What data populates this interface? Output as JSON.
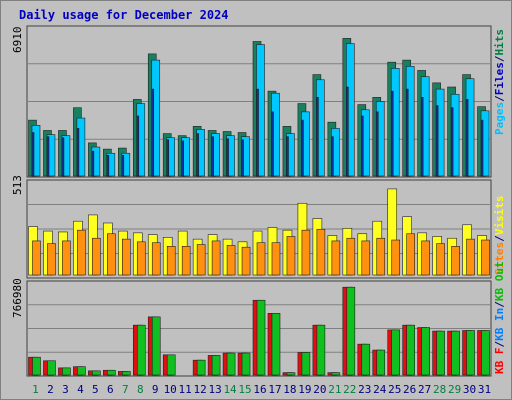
{
  "title": "Daily usage for December 2024",
  "colors": {
    "background": "#c0c0c0",
    "border": "#505050",
    "title": "#0000c0",
    "hits": "#008040",
    "files": "#00c0ff",
    "pages": "#0000c0",
    "visits": "#ffff00",
    "sites": "#ff8000",
    "kbin": "#008040",
    "kbout": "#00c000",
    "kbf": "#ff0000",
    "weekend": "#008040",
    "weekday": "#000080",
    "gridline": "#808080"
  },
  "chart_data": [
    {
      "type": "bar",
      "panel": "top",
      "ymax_label": "6910",
      "ylim": [
        0,
        6910
      ],
      "legend": [
        "Pages",
        "/",
        "Files",
        "/",
        "Hits"
      ],
      "categories": [
        "1",
        "2",
        "3",
        "4",
        "5",
        "6",
        "7",
        "8",
        "9",
        "10",
        "11",
        "12",
        "13",
        "14",
        "15",
        "16",
        "17",
        "18",
        "19",
        "20",
        "21",
        "22",
        "23",
        "24",
        "25",
        "26",
        "27",
        "28",
        "29",
        "30",
        "31"
      ],
      "weekend_days": [
        1,
        7,
        8,
        14,
        15,
        21,
        22,
        28,
        29
      ],
      "series": [
        {
          "name": "Hits",
          "values": [
            2700,
            2200,
            2200,
            3300,
            1600,
            1300,
            1350,
            3700,
            5900,
            2050,
            1950,
            2400,
            2200,
            2150,
            2100,
            6500,
            4100,
            2400,
            3500,
            4900,
            2600,
            6650,
            3450,
            3800,
            5500,
            5600,
            5100,
            4500,
            4300,
            4900,
            3350
          ]
        },
        {
          "name": "Files",
          "values": [
            2450,
            2000,
            1950,
            2800,
            1400,
            1100,
            1100,
            3500,
            5600,
            1850,
            1850,
            2250,
            2050,
            1950,
            1900,
            6350,
            4000,
            2050,
            3100,
            4650,
            2300,
            6400,
            3200,
            3600,
            5200,
            5300,
            4800,
            4200,
            3950,
            4700,
            3150
          ]
        },
        {
          "name": "Pages",
          "values": [
            2100,
            1900,
            1850,
            2300,
            1200,
            1000,
            1000,
            2900,
            4200,
            1750,
            1700,
            2050,
            1900,
            1800,
            1750,
            4200,
            3100,
            1900,
            2700,
            3800,
            1900,
            4300,
            2900,
            3100,
            4100,
            4200,
            3800,
            3400,
            3300,
            3700,
            2700
          ]
        }
      ]
    },
    {
      "type": "bar",
      "panel": "middle",
      "ymax_label": "513",
      "ylim": [
        0,
        513
      ],
      "legend": [
        "Visits",
        "/",
        "Sites"
      ],
      "categories": [
        "1",
        "2",
        "3",
        "4",
        "5",
        "6",
        "7",
        "8",
        "9",
        "10",
        "11",
        "12",
        "13",
        "14",
        "15",
        "16",
        "17",
        "18",
        "19",
        "20",
        "21",
        "22",
        "23",
        "24",
        "25",
        "26",
        "27",
        "28",
        "29",
        "30",
        "31"
      ],
      "series": [
        {
          "name": "Visits",
          "values": [
            270,
            245,
            240,
            300,
            335,
            290,
            245,
            235,
            225,
            210,
            245,
            200,
            225,
            200,
            185,
            245,
            265,
            250,
            400,
            315,
            220,
            260,
            230,
            300,
            480,
            325,
            235,
            215,
            205,
            280,
            220
          ]
        },
        {
          "name": "Sites",
          "values": [
            190,
            175,
            190,
            250,
            205,
            230,
            200,
            185,
            180,
            160,
            160,
            170,
            190,
            165,
            155,
            180,
            180,
            215,
            250,
            255,
            190,
            205,
            190,
            205,
            195,
            230,
            190,
            175,
            160,
            200,
            195
          ]
        }
      ]
    },
    {
      "type": "bar",
      "panel": "bottom",
      "ymax_label": "766980",
      "ylim": [
        0,
        766980
      ],
      "legend": [
        "KB F",
        "/",
        "KB In",
        "/",
        "KB Out"
      ],
      "categories": [
        "1",
        "2",
        "3",
        "4",
        "5",
        "6",
        "7",
        "8",
        "9",
        "10",
        "11",
        "12",
        "13",
        "14",
        "15",
        "16",
        "17",
        "18",
        "19",
        "20",
        "21",
        "22",
        "23",
        "24",
        "25",
        "26",
        "27",
        "28",
        "29",
        "30",
        "31"
      ],
      "series": [
        {
          "name": "KB F",
          "values": [
            150000,
            120000,
            60000,
            70000,
            35000,
            40000,
            30000,
            420000,
            490000,
            170000,
            0,
            125000,
            165000,
            185000,
            185000,
            630000,
            520000,
            20000,
            190000,
            420000,
            20000,
            740000,
            260000,
            210000,
            380000,
            420000,
            400000,
            370000,
            370000,
            375000,
            375000
          ]
        },
        {
          "name": "KB In",
          "values": [
            0,
            0,
            0,
            0,
            0,
            0,
            0,
            0,
            0,
            0,
            0,
            0,
            0,
            0,
            0,
            0,
            0,
            0,
            0,
            0,
            0,
            0,
            0,
            0,
            0,
            0,
            0,
            0,
            0,
            0,
            0
          ]
        },
        {
          "name": "KB Out",
          "values": [
            150000,
            120000,
            60000,
            70000,
            35000,
            40000,
            30000,
            420000,
            490000,
            170000,
            0,
            125000,
            165000,
            185000,
            185000,
            630000,
            520000,
            20000,
            190000,
            420000,
            20000,
            740000,
            260000,
            210000,
            380000,
            420000,
            400000,
            370000,
            370000,
            375000,
            375000
          ]
        }
      ]
    }
  ]
}
